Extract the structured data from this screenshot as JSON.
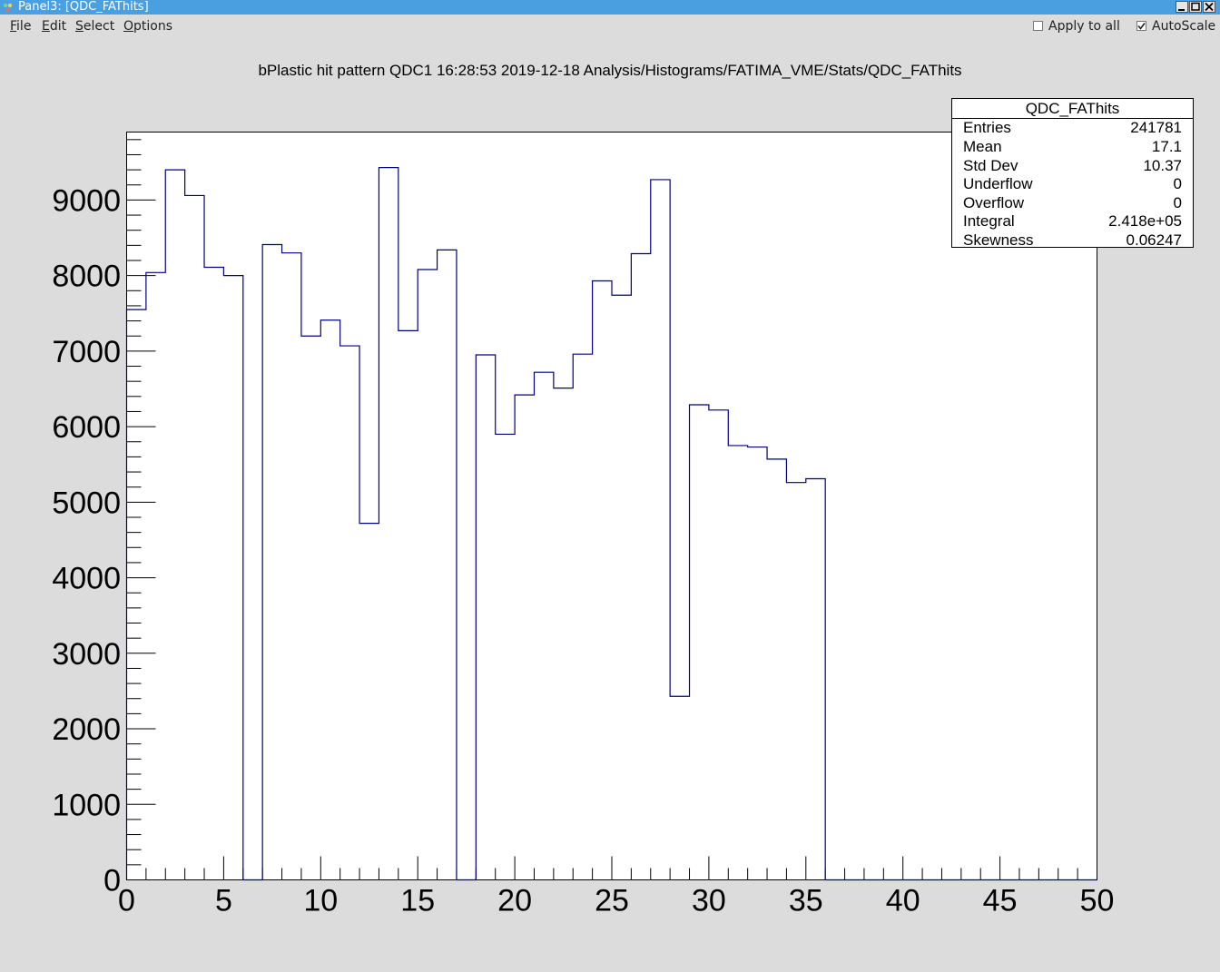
{
  "window": {
    "title": "Panel3: [QDC_FAThits]"
  },
  "menu": {
    "items": [
      {
        "label": "File",
        "accel": "F",
        "rest": "ile"
      },
      {
        "label": "Edit",
        "accel": "E",
        "rest": "dit"
      },
      {
        "label": "Select",
        "accel": "S",
        "rest": "elect"
      },
      {
        "label": "Options",
        "accel": "O",
        "rest": "ptions"
      }
    ],
    "apply_to_all": {
      "label": "Apply to all",
      "checked": false
    },
    "autoscale": {
      "label": "AutoScale",
      "checked": true
    }
  },
  "stats": {
    "title": "QDC_FAThits",
    "rows": [
      {
        "label": "Entries",
        "value": "241781"
      },
      {
        "label": "Mean",
        "value": "17.1"
      },
      {
        "label": "Std Dev",
        "value": "10.37"
      },
      {
        "label": "Underflow",
        "value": "0"
      },
      {
        "label": "Overflow",
        "value": "0"
      },
      {
        "label": "Integral",
        "value": "2.418e+05"
      },
      {
        "label": "Skewness",
        "value": "0.06247"
      }
    ]
  },
  "colors": {
    "line": "#00007f",
    "titlebar": "#4a9fe0",
    "background": "#dcdcdc"
  },
  "chart_data": {
    "type": "bar",
    "title": "bPlastic hit pattern QDC1  16:28:53  2019-12-18  Analysis/Histograms/FATIMA_VME/Stats/QDC_FAThits",
    "xlabel": "",
    "ylabel": "",
    "xlim": [
      0,
      50
    ],
    "ylim": [
      0,
      9900
    ],
    "grid": false,
    "bin_edges_x": [
      0,
      1,
      2,
      3,
      4,
      5,
      6,
      7,
      8,
      9,
      10,
      11,
      12,
      13,
      14,
      15,
      16,
      17,
      18,
      19,
      20,
      21,
      22,
      23,
      24,
      25,
      26,
      27,
      28,
      29,
      30,
      31,
      32,
      33,
      34,
      35,
      36,
      37,
      38,
      39,
      40,
      41,
      42,
      43,
      44,
      45,
      46,
      47,
      48,
      49,
      50
    ],
    "values": [
      7550,
      8040,
      9400,
      9060,
      8110,
      8000,
      0,
      8410,
      8300,
      7200,
      7410,
      7070,
      4720,
      9430,
      7270,
      8080,
      8340,
      0,
      6950,
      5900,
      6420,
      6720,
      6510,
      6960,
      7930,
      7740,
      8290,
      9270,
      2430,
      6290,
      6220,
      5750,
      5730,
      5570,
      5260,
      5310,
      0,
      0,
      0,
      0,
      0,
      0,
      0,
      0,
      0,
      0,
      0,
      0,
      0,
      0
    ],
    "x_ticks": [
      0,
      5,
      10,
      15,
      20,
      25,
      30,
      35,
      40,
      45,
      50
    ],
    "x_tick_labels": [
      "0",
      "5",
      "10",
      "15",
      "20",
      "25",
      "30",
      "35",
      "40",
      "45",
      "50"
    ],
    "y_ticks": [
      0,
      1000,
      2000,
      3000,
      4000,
      5000,
      6000,
      7000,
      8000,
      9000
    ],
    "y_tick_labels": [
      "0",
      "1000",
      "2000",
      "3000",
      "4000",
      "5000",
      "6000",
      "7000",
      "8000",
      "9000"
    ]
  }
}
